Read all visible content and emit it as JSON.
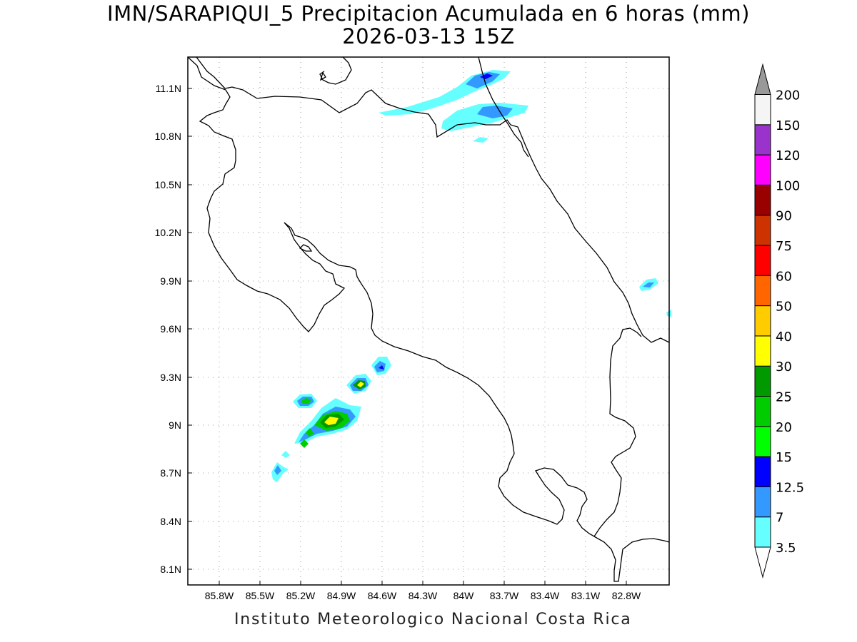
{
  "title": {
    "line1": "IMN/SARAPIQUI_5 Precipitacion Acumulada en 6 horas (mm)",
    "line2": "2026-03-13 15Z"
  },
  "footer": "Instituto Meteorologico Nacional Costa Rica",
  "axes": {
    "lon_labels": [
      "85.8W",
      "85.5W",
      "85.2W",
      "84.9W",
      "84.6W",
      "84.3W",
      "84W",
      "83.7W",
      "83.4W",
      "83.1W",
      "82.8W"
    ],
    "lat_labels": [
      "11.1N",
      "10.8N",
      "10.5N",
      "10.2N",
      "9.9N",
      "9.6N",
      "9.3N",
      "9N",
      "8.7N",
      "8.4N",
      "8.1N"
    ]
  },
  "legend": {
    "bins": [
      {
        "label": "3.5",
        "color": "#66ffff"
      },
      {
        "label": "7",
        "color": "#3399ff"
      },
      {
        "label": "12.5",
        "color": "#0000ff"
      },
      {
        "label": "15",
        "color": "#00ff00"
      },
      {
        "label": "20",
        "color": "#00cc00"
      },
      {
        "label": "25",
        "color": "#009900"
      },
      {
        "label": "30",
        "color": "#ffff00"
      },
      {
        "label": "40",
        "color": "#ffcc00"
      },
      {
        "label": "50",
        "color": "#ff6600"
      },
      {
        "label": "60",
        "color": "#ff0000"
      },
      {
        "label": "75",
        "color": "#cc3300"
      },
      {
        "label": "90",
        "color": "#990000"
      },
      {
        "label": "100",
        "color": "#ff00ff"
      },
      {
        "label": "120",
        "color": "#9933cc"
      },
      {
        "label": "150",
        "color": "#f5f5f5"
      },
      {
        "label": "200",
        "color": "#999999"
      }
    ]
  }
}
